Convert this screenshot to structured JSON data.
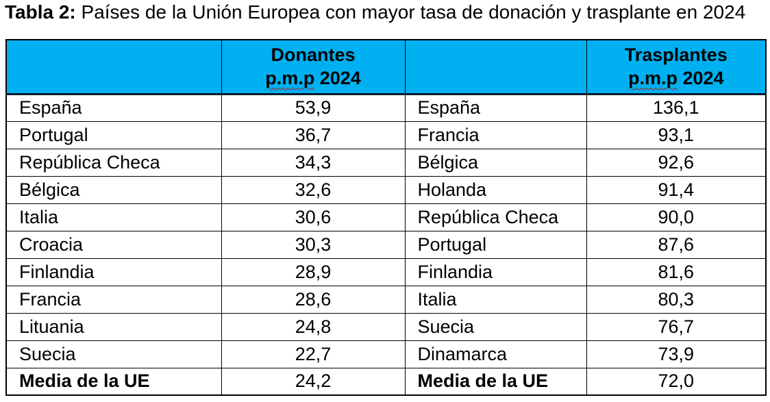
{
  "title": {
    "prefix": "Tabla 2:",
    "rest": " Países de la Unión Europea con mayor tasa de donación y trasplante en 2024"
  },
  "table": {
    "headers": {
      "donantes": {
        "line1": "Donantes",
        "pmp": "p.m.p",
        "year": " 2024"
      },
      "trasplantes": {
        "line1": "Trasplantes",
        "pmp": "p.m.p",
        "year": " 2024"
      }
    },
    "rows": [
      {
        "left_country": "España",
        "left_value": "53,9",
        "right_country": "España",
        "right_value": "136,1",
        "bold": false
      },
      {
        "left_country": "Portugal",
        "left_value": "36,7",
        "right_country": "Francia",
        "right_value": "93,1",
        "bold": false
      },
      {
        "left_country": "República Checa",
        "left_value": "34,3",
        "right_country": "Bélgica",
        "right_value": "92,6",
        "bold": false
      },
      {
        "left_country": "Bélgica",
        "left_value": "32,6",
        "right_country": "Holanda",
        "right_value": "91,4",
        "bold": false
      },
      {
        "left_country": "Italia",
        "left_value": "30,6",
        "right_country": "República Checa",
        "right_value": "90,0",
        "bold": false
      },
      {
        "left_country": "Croacia",
        "left_value": "30,3",
        "right_country": "Portugal",
        "right_value": "87,6",
        "bold": false
      },
      {
        "left_country": "Finlandia",
        "left_value": "28,9",
        "right_country": "Finlandia",
        "right_value": "81,6",
        "bold": false
      },
      {
        "left_country": "Francia",
        "left_value": "28,6",
        "right_country": "Italia",
        "right_value": "80,3",
        "bold": false
      },
      {
        "left_country": "Lituania",
        "left_value": "24,8",
        "right_country": "Suecia",
        "right_value": "76,7",
        "bold": false
      },
      {
        "left_country": "Suecia",
        "left_value": "22,7",
        "right_country": "Dinamarca",
        "right_value": "73,9",
        "bold": false
      },
      {
        "left_country": "Media de la UE",
        "left_value": "24,2",
        "right_country": "Media de la UE",
        "right_value": "72,0",
        "bold": true
      }
    ]
  },
  "colors": {
    "header_bg": "#00B0F0",
    "border": "#000000",
    "header_divider": "#0d1b2a",
    "spellcheck_squiggle": "#b01513",
    "text": "#000000",
    "page_bg": "#ffffff"
  }
}
